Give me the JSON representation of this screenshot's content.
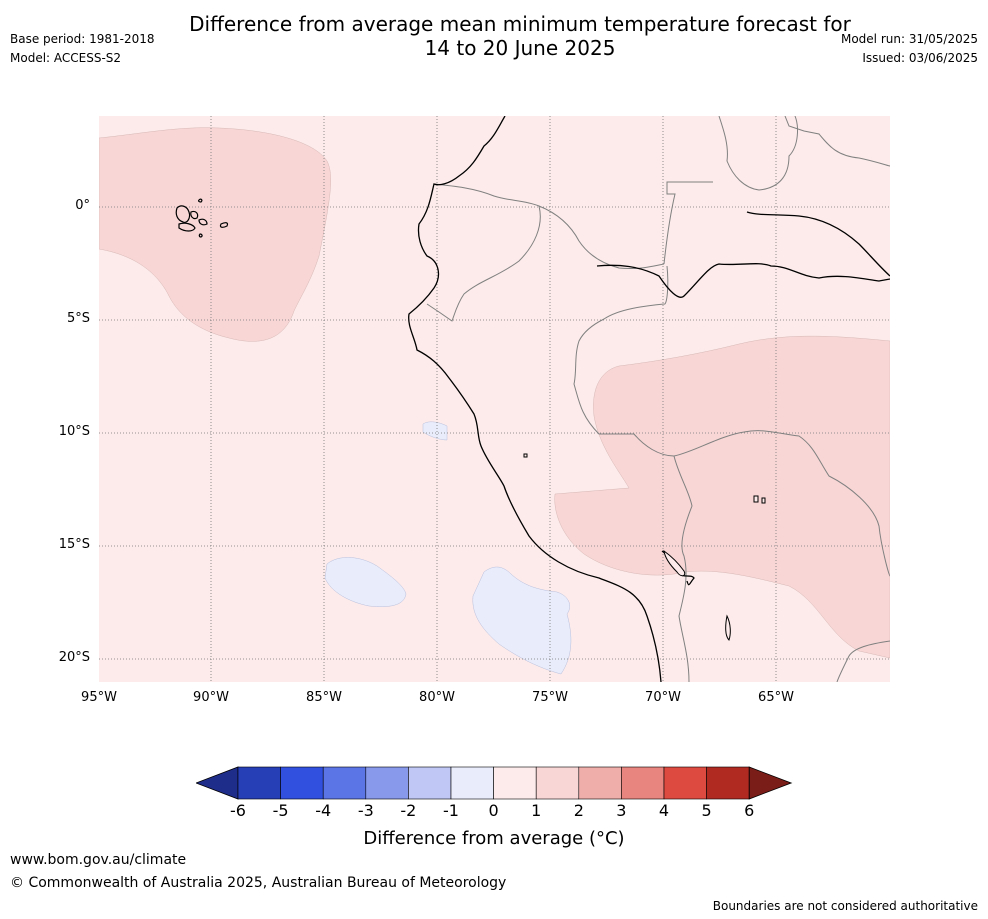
{
  "header": {
    "title_line1": "Difference from average mean minimum temperature forecast for",
    "title_line2": "14 to 20 June 2025",
    "base_period": "Base period: 1981-2018",
    "model": "Model: ACCESS-S2",
    "model_run": "Model run: 31/05/2025",
    "issued": "Issued: 03/06/2025"
  },
  "map": {
    "lat_labels": [
      "0°",
      "5°S",
      "10°S",
      "15°S",
      "20°S"
    ],
    "lon_labels": [
      "95°W",
      "90°W",
      "85°W",
      "80°W",
      "75°W",
      "70°W",
      "65°W"
    ],
    "colors": {
      "background_anomaly": "#fcebea",
      "warm_anomaly": "#f7d6d5",
      "cool_anomaly": "#e9edfb",
      "coastline": "#000000",
      "border": "#808080"
    }
  },
  "colorbar": {
    "label": "Difference from average (°C)",
    "ticks": [
      "-6",
      "-5",
      "-4",
      "-3",
      "-2",
      "-1",
      "0",
      "1",
      "2",
      "3",
      "4",
      "5",
      "6"
    ],
    "colors": [
      "#1f2d8a",
      "#263eb6",
      "#3250e0",
      "#5c75e6",
      "#8899ec",
      "#c0c7f4",
      "#e9ecfb",
      "#fcebea",
      "#f7d6d5",
      "#f0aeab",
      "#e8857e",
      "#dc4a40",
      "#b02a22",
      "#7a1c17"
    ]
  },
  "footer": {
    "url": "www.bom.gov.au/climate",
    "copyright": "© Commonwealth of Australia 2025, Australian Bureau of Meteorology",
    "disclaimer": "Boundaries are not considered authoritative"
  }
}
